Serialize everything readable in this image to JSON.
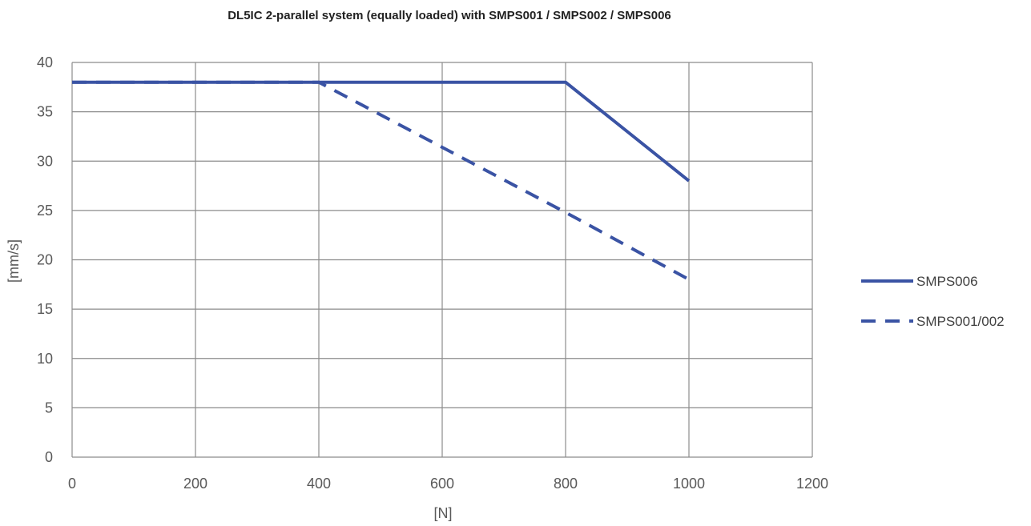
{
  "chart_data": {
    "type": "line",
    "title": "DL5IC 2-parallel system (equally loaded) with SMPS001 / SMPS002 / SMPS006",
    "xlabel": "[N]",
    "ylabel": "[mm/s]",
    "xlim": [
      0,
      1200
    ],
    "ylim": [
      0,
      40
    ],
    "xticks": [
      0,
      200,
      400,
      600,
      800,
      1000,
      1200
    ],
    "yticks": [
      0,
      5,
      10,
      15,
      20,
      25,
      30,
      35,
      40
    ],
    "xtick_labels": [
      "0",
      "200",
      "400",
      "600",
      "800",
      "1000",
      "1200"
    ],
    "ytick_labels": [
      "0",
      "5",
      "10",
      "15",
      "20",
      "25",
      "30",
      "35",
      "40"
    ],
    "grid": true,
    "legend_position": "right",
    "series": [
      {
        "name": "SMPS006",
        "style": "solid",
        "color": "#3a53a4",
        "points": [
          [
            0,
            38
          ],
          [
            400,
            38
          ],
          [
            800,
            38
          ],
          [
            1000,
            28
          ]
        ]
      },
      {
        "name": "SMPS001/002",
        "style": "dashed",
        "color": "#3a53a4",
        "points": [
          [
            0,
            38
          ],
          [
            400,
            38
          ],
          [
            800,
            24.8
          ],
          [
            1000,
            18
          ]
        ]
      }
    ]
  }
}
